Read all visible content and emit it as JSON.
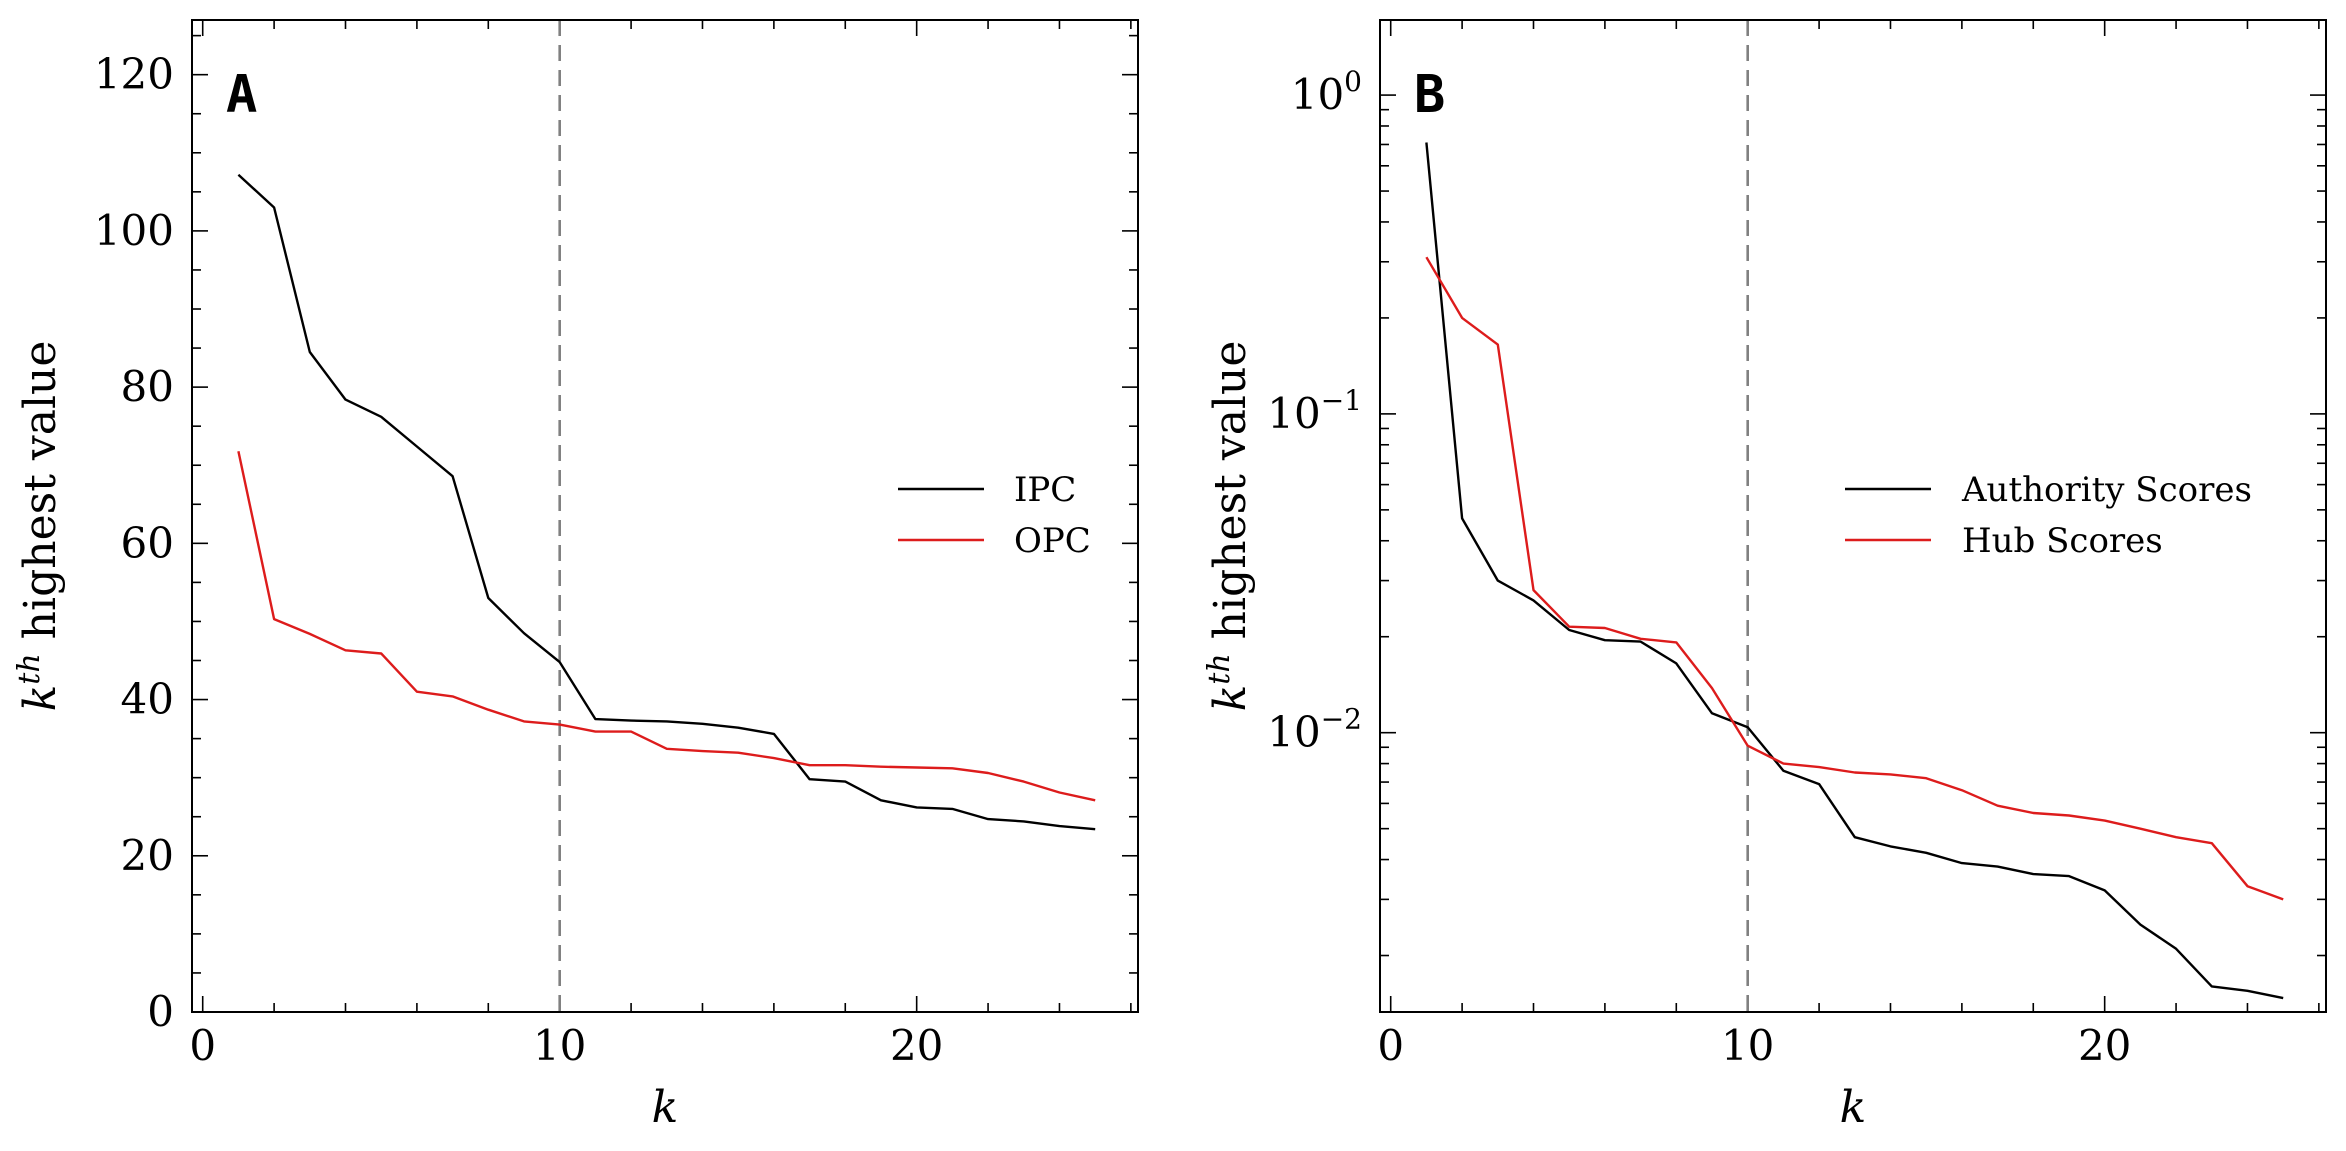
{
  "chart_data": [
    {
      "type": "line",
      "panel_label": "A",
      "xlabel": "k",
      "ylabel": {
        "base": "k",
        "sup": "th",
        "rest": " highest value"
      },
      "yscale": "linear",
      "xlim": [
        -0.3,
        26.2
      ],
      "ylim": [
        0,
        127
      ],
      "x_ticks": [
        0,
        10,
        20
      ],
      "x_tick_labels": [
        "0",
        "10",
        "20"
      ],
      "y_ticks": [
        0,
        20,
        40,
        60,
        80,
        100,
        120
      ],
      "y_tick_labels": [
        "0",
        "20",
        "40",
        "60",
        "80",
        "100",
        "120"
      ],
      "vline": 10,
      "legend": "center-right",
      "x": [
        1,
        2,
        3,
        4,
        5,
        6,
        7,
        8,
        9,
        10,
        11,
        12,
        13,
        14,
        15,
        16,
        17,
        18,
        19,
        20,
        21,
        22,
        23,
        24,
        25
      ],
      "series": [
        {
          "name": "IPC",
          "color": "#000000",
          "values": [
            107.2,
            103.0,
            84.5,
            78.4,
            76.2,
            72.4,
            68.6,
            53.0,
            48.5,
            44.8,
            37.5,
            37.3,
            37.2,
            36.9,
            36.4,
            35.6,
            29.8,
            29.5,
            27.1,
            26.2,
            26.0,
            24.7,
            24.4,
            23.8,
            23.4
          ]
        },
        {
          "name": "OPC",
          "color": "#dd1c1c",
          "values": [
            71.8,
            50.3,
            48.4,
            46.3,
            45.9,
            41.0,
            40.4,
            38.7,
            37.2,
            36.8,
            35.9,
            35.9,
            33.7,
            33.4,
            33.2,
            32.5,
            31.6,
            31.6,
            31.4,
            31.3,
            31.2,
            30.6,
            29.5,
            28.1,
            27.1
          ]
        }
      ]
    },
    {
      "type": "line",
      "panel_label": "B",
      "xlabel": "k",
      "ylabel": {
        "base": "k",
        "sup": "th",
        "rest": " highest value"
      },
      "yscale": "log",
      "xlim": [
        -0.3,
        26.2
      ],
      "ylim": [
        0.00133,
        1.72
      ],
      "x_ticks": [
        0,
        10,
        20
      ],
      "x_tick_labels": [
        "0",
        "10",
        "20"
      ],
      "y_major_ticks": [
        1,
        0.1,
        0.01
      ],
      "y_tick_labels": [
        {
          "base": "10",
          "exp": "0"
        },
        {
          "base": "10",
          "exp": "−1"
        },
        {
          "base": "10",
          "exp": "−2"
        }
      ],
      "vline": 10,
      "legend": "center-right",
      "x": [
        1,
        2,
        3,
        4,
        5,
        6,
        7,
        8,
        9,
        10,
        11,
        12,
        13,
        14,
        15,
        16,
        17,
        18,
        19,
        20,
        21,
        22,
        23,
        24,
        25
      ],
      "series": [
        {
          "name": "Authority Scores",
          "color": "#000000",
          "values": [
            0.71,
            0.047,
            0.03,
            0.026,
            0.021,
            0.0195,
            0.0193,
            0.0165,
            0.0115,
            0.0104,
            0.0076,
            0.0069,
            0.0047,
            0.0044,
            0.0042,
            0.0039,
            0.0038,
            0.0036,
            0.00355,
            0.0032,
            0.0025,
            0.0021,
            0.0016,
            0.00155,
            0.00147
          ]
        },
        {
          "name": "Hub Scores",
          "color": "#dd1c1c",
          "values": [
            0.31,
            0.2,
            0.165,
            0.028,
            0.0215,
            0.0213,
            0.0197,
            0.0192,
            0.0138,
            0.0091,
            0.008,
            0.0078,
            0.0075,
            0.0074,
            0.0072,
            0.0066,
            0.0059,
            0.0056,
            0.0055,
            0.0053,
            0.005,
            0.0047,
            0.0045,
            0.0033,
            0.003
          ]
        }
      ]
    }
  ]
}
